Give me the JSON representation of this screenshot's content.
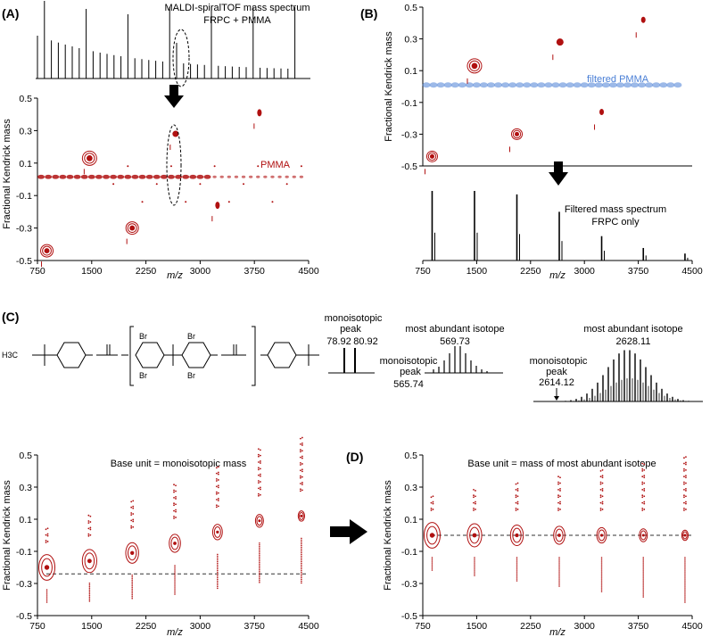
{
  "chart_data": [
    {
      "id": "A",
      "type": "scatter",
      "panel_label": "(A)",
      "title": "MALDI-spiralTOF mass spectrum",
      "subtitle": "FRPC + PMMA",
      "xlabel": "m/z",
      "ylabel": "Fractional Kendrick mass",
      "xlim": [
        750,
        4500
      ],
      "ylim": [
        -0.5,
        0.5
      ],
      "x_ticks": [
        750,
        1500,
        2250,
        3000,
        3750,
        4500
      ],
      "y_ticks": [
        "0.5",
        "0.3",
        "0.1",
        "-0.1",
        "-0.3",
        "-0.5"
      ],
      "annotations": [
        "PMMA"
      ],
      "series": [
        {
          "name": "PMMA",
          "color": "#b01010",
          "x": [
            800,
            900,
            1000,
            1100,
            1200,
            1300,
            1400,
            1500,
            1600,
            1700,
            1800,
            1900,
            2000,
            2100,
            2200,
            2300,
            2400,
            2500,
            2600,
            2700,
            2800,
            2900,
            3000,
            3100,
            3200,
            3300,
            3400,
            3500,
            3600,
            3700,
            3800,
            3900,
            4000,
            4100,
            4200,
            4300,
            4400
          ],
          "y": [
            0.015,
            0.015,
            0.015,
            0.015,
            0.015,
            0.015,
            0.015,
            0.015,
            0.015,
            0.015,
            0.015,
            0.015,
            0.015,
            0.015,
            0.015,
            0.015,
            0.015,
            0.015,
            0.015,
            0.015,
            0.015,
            0.015,
            0.015,
            0.015,
            0.015,
            0.015,
            0.015,
            0.015,
            0.015,
            0.015,
            0.015,
            0.015,
            0.015,
            0.015,
            0.015,
            0.015,
            0.015
          ]
        },
        {
          "name": "FRPC",
          "color": "#b01010",
          "x": [
            880,
            1470,
            2060,
            2660,
            3240,
            3820
          ],
          "y": [
            -0.44,
            0.13,
            -0.3,
            0.28,
            -0.16,
            0.41
          ]
        }
      ]
    },
    {
      "id": "B",
      "type": "scatter",
      "panel_label": "(B)",
      "ylabel": "Fractional Kendrick mass",
      "xlim": [
        750,
        4500
      ],
      "ylim": [
        -0.5,
        0.5
      ],
      "y_ticks": [
        "0.5",
        "0.3",
        "0.1",
        "-0.1",
        "-0.3",
        "-0.5"
      ],
      "annotations": [
        "filtered PMMA"
      ],
      "series": [
        {
          "name": "filtered PMMA",
          "color": "#4a7fd6",
          "x": [
            800,
            900,
            1000,
            1100,
            1200,
            1300,
            1400,
            1500,
            1600,
            1700,
            1800,
            1900,
            2000,
            2100,
            2200,
            2300,
            2400,
            2500,
            2600,
            2700,
            2800,
            2900,
            3000,
            3100,
            3200,
            3300,
            3400,
            3500,
            3600,
            3700,
            3800,
            3900,
            4000,
            4100,
            4200,
            4300
          ],
          "y": [
            0.01,
            0.01,
            0.01,
            0.01,
            0.01,
            0.01,
            0.01,
            0.01,
            0.01,
            0.01,
            0.01,
            0.01,
            0.01,
            0.01,
            0.01,
            0.01,
            0.01,
            0.01,
            0.01,
            0.01,
            0.01,
            0.01,
            0.01,
            0.01,
            0.01,
            0.01,
            0.01,
            0.01,
            0.01,
            0.01,
            0.01,
            0.01,
            0.01,
            0.01,
            0.01,
            0.01
          ]
        },
        {
          "name": "FRPC",
          "color": "#b01010",
          "x": [
            880,
            1470,
            2060,
            2660,
            3240,
            3820
          ],
          "y": [
            -0.44,
            0.13,
            -0.3,
            0.28,
            -0.16,
            0.42
          ]
        }
      ]
    },
    {
      "id": "B-spectrum",
      "type": "bar",
      "title": "Filtered mass spectrum",
      "subtitle": "FRPC only",
      "xlabel": "m/z",
      "xlim": [
        750,
        4500
      ],
      "x_ticks": [
        750,
        1500,
        2250,
        3000,
        3750,
        4500
      ],
      "peaks_x": [
        880,
        1470,
        2060,
        2650,
        3240,
        3820,
        4400
      ],
      "peaks_y": [
        1.0,
        1.0,
        0.95,
        0.7,
        0.35,
        0.18,
        0.1
      ]
    },
    {
      "id": "C",
      "type": "scatter",
      "panel_label": "(C)",
      "title": "Base unit = monoisotopic mass",
      "xlabel": "m/z",
      "ylabel": "Fractional Kendrick mass",
      "xlim": [
        750,
        4500
      ],
      "ylim": [
        -0.5,
        0.5
      ],
      "x_ticks": [
        750,
        1500,
        2250,
        3000,
        3750,
        4500
      ],
      "y_ticks": [
        "0.5",
        "0.3",
        "0.1",
        "-0.1",
        "-0.3",
        "-0.5"
      ],
      "reference_line_y": -0.24,
      "series": [
        {
          "name": "monoisotopic base",
          "color": "#b01010",
          "x": [
            880,
            1470,
            2060,
            2650,
            3240,
            3820,
            4400
          ],
          "y": [
            -0.2,
            -0.16,
            -0.11,
            -0.05,
            0.02,
            0.09,
            0.12
          ]
        }
      ]
    },
    {
      "id": "D",
      "type": "scatter",
      "panel_label": "(D)",
      "title": "Base unit = mass of most abundant isotope",
      "xlabel": "m/z",
      "ylabel": "Fractional Kendrick mass",
      "xlim": [
        750,
        4500
      ],
      "ylim": [
        -0.5,
        0.5
      ],
      "x_ticks": [
        750,
        1500,
        2250,
        3000,
        3750,
        4500
      ],
      "y_ticks": [
        "0.5",
        "0.3",
        "0.1",
        "-0.1",
        "-0.3",
        "-0.5"
      ],
      "reference_line_y": 0.0,
      "series": [
        {
          "name": "most abundant isotope base",
          "color": "#b01010",
          "x": [
            880,
            1470,
            2060,
            2650,
            3240,
            3820,
            4400
          ],
          "y": [
            0.0,
            0.0,
            0.0,
            0.0,
            0.0,
            0.0,
            0.0
          ]
        }
      ]
    }
  ],
  "isotope_patterns": {
    "p1": {
      "label_mono": "monoisotopic",
      "label_mono2": "peak",
      "v1": "78.92",
      "v2": "80.92"
    },
    "p2": {
      "label_most": "most abundant isotope",
      "v_most": "569.73",
      "label_mono": "monoisotopic",
      "label_mono2": "peak",
      "v_mono": "565.74"
    },
    "p3": {
      "label_most": "most abundant isotope",
      "v_most": "2628.11",
      "label_mono": "monoisotopic",
      "label_mono2": "peak",
      "v_mono": "2614.12"
    }
  },
  "structure": {
    "left_group": "H3C",
    "br": "Br"
  },
  "colors": {
    "red": "#b01010",
    "blue": "#4a7fd6",
    "black": "#000000"
  }
}
